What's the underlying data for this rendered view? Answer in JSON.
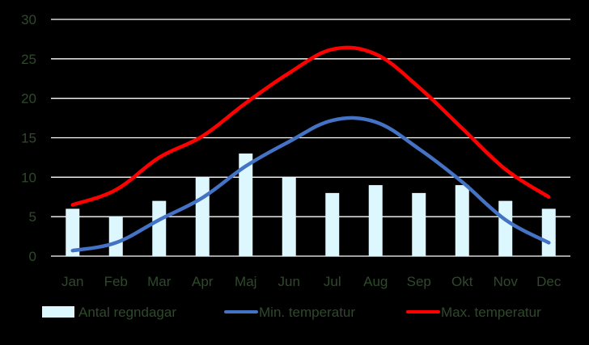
{
  "chart_data": {
    "type": "bar+line",
    "categories": [
      "Jan",
      "Feb",
      "Mar",
      "Apr",
      "Maj",
      "Jun",
      "Jul",
      "Aug",
      "Sep",
      "Okt",
      "Nov",
      "Dec"
    ],
    "ylim": [
      0,
      30
    ],
    "yticks": [
      "0",
      "5",
      "10",
      "15",
      "20",
      "25",
      "30"
    ],
    "grid": true,
    "legend_position": "bottom",
    "series": [
      {
        "name": "Antal regndagar",
        "kind": "bar",
        "color": "#DDF7FF",
        "values": [
          6,
          5,
          7,
          10,
          13,
          10,
          8,
          9,
          8,
          9,
          7,
          6
        ]
      },
      {
        "name": "Min. temperatur",
        "kind": "line",
        "color": "#4472C4",
        "values": [
          0.7,
          1.7,
          4.6,
          7.4,
          11.4,
          14.5,
          17.2,
          17.0,
          13.6,
          9.4,
          4.6,
          1.7
        ]
      },
      {
        "name": "Max. temperatur",
        "kind": "line",
        "color": "#FF0000",
        "values": [
          6.5,
          8.4,
          12.5,
          15.2,
          19.4,
          23.2,
          26.2,
          25.6,
          21.4,
          16.2,
          11.0,
          7.5
        ]
      }
    ],
    "axis_label_color": "#2E4A2A",
    "gridline_color": "#FFFFFF"
  }
}
